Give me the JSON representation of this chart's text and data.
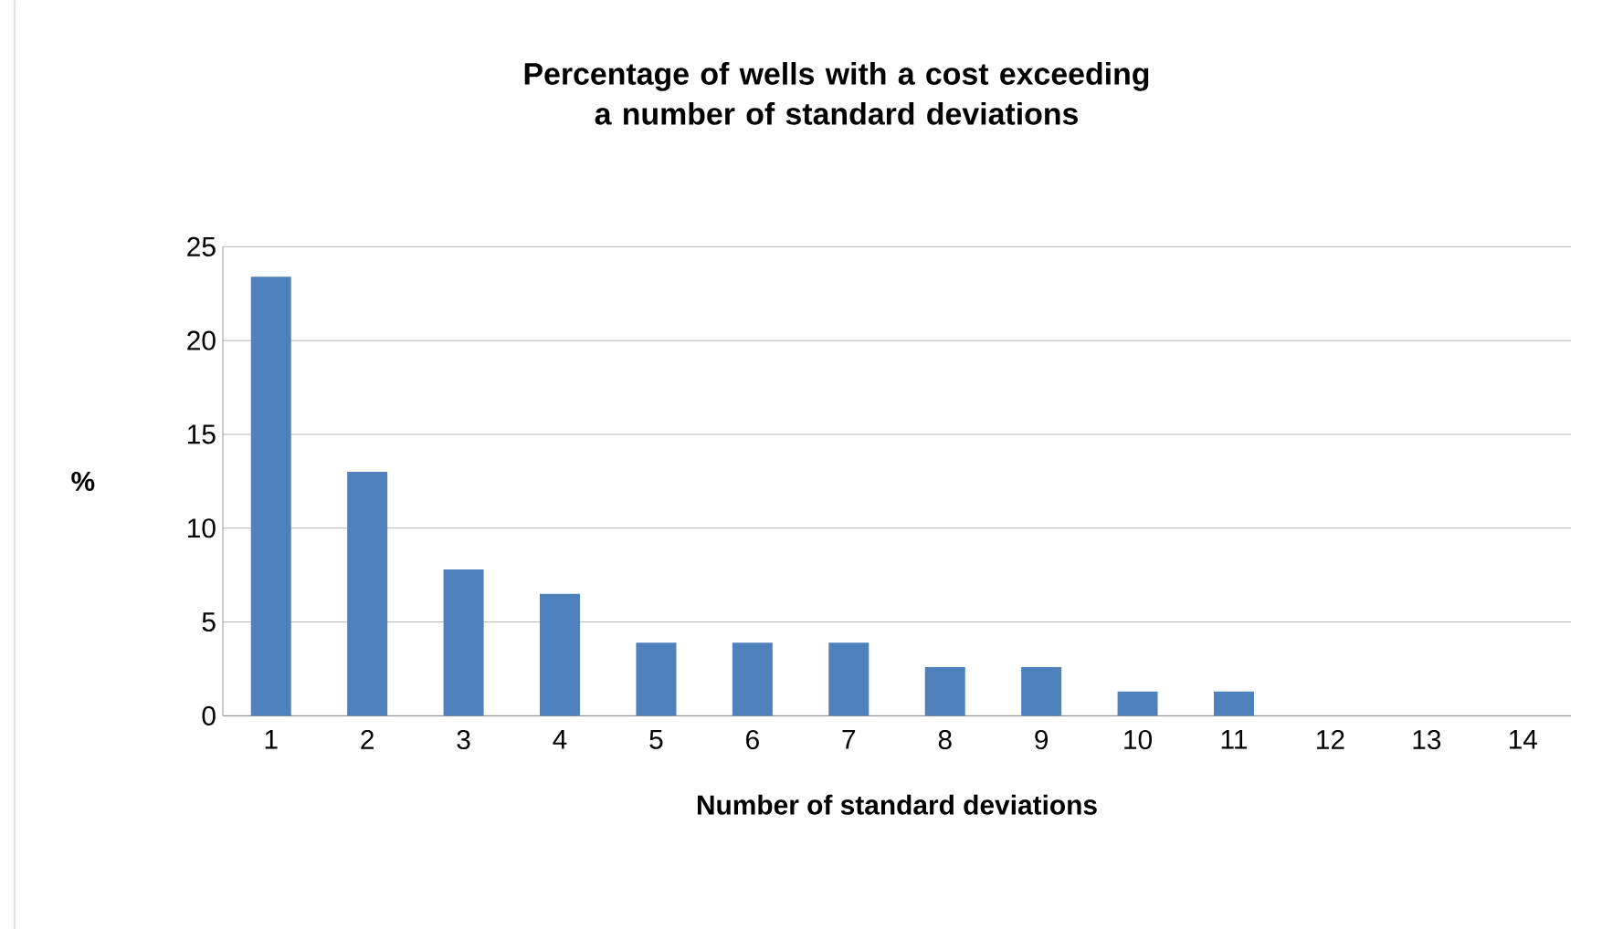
{
  "chart_data": {
    "type": "bar",
    "title": "Percentage of wells with a cost exceeding a number of standard deviations",
    "xlabel": "Number of standard deviations",
    "ylabel": "%",
    "categories": [
      "1",
      "2",
      "3",
      "4",
      "5",
      "6",
      "7",
      "8",
      "9",
      "10",
      "11",
      "12",
      "13",
      "14"
    ],
    "values": [
      23.4,
      13.0,
      7.8,
      6.5,
      3.9,
      3.9,
      3.9,
      2.6,
      2.6,
      1.3,
      1.3,
      0,
      0,
      0
    ],
    "color": "#4f81bd",
    "ylim": [
      0,
      25
    ],
    "yticks": [
      0,
      5,
      10,
      15,
      20,
      25
    ],
    "grid": "y"
  }
}
